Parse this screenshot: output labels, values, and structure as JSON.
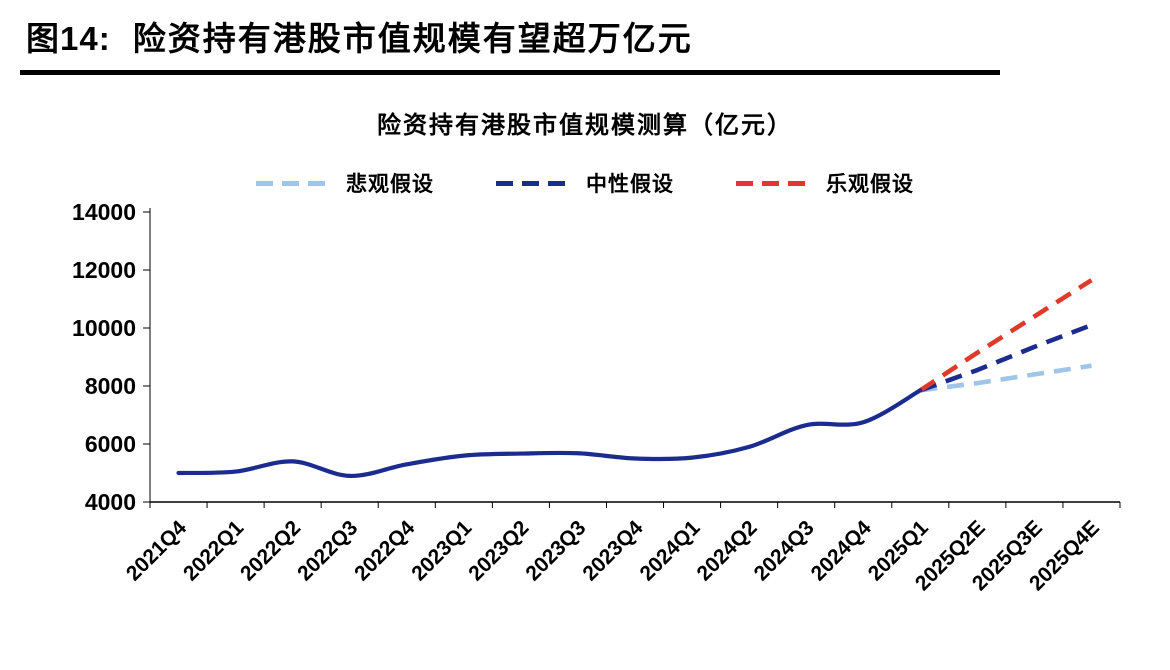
{
  "header": {
    "figure_label": "图14:",
    "title": "险资持有港股市值规模有望超万亿元"
  },
  "chart_data": {
    "type": "line",
    "title": "险资持有港股市值规模测算（亿元）",
    "xlabel": "",
    "ylabel": "",
    "ylim": [
      4000,
      14000
    ],
    "yticks": [
      4000,
      6000,
      8000,
      10000,
      12000,
      14000
    ],
    "grid": false,
    "legend_position": "top",
    "categories": [
      "2021Q4",
      "2022Q1",
      "2022Q2",
      "2022Q3",
      "2022Q4",
      "2023Q1",
      "2023Q2",
      "2023Q3",
      "2023Q4",
      "2024Q1",
      "2024Q2",
      "2024Q3",
      "2024Q4",
      "2025Q1",
      "2025Q2E",
      "2025Q3E",
      "2025Q4E"
    ],
    "series": [
      {
        "id": "pessimistic",
        "label": "悲观假设",
        "color": "#9FC5E8",
        "style": "dashed",
        "values": [
          null,
          null,
          null,
          null,
          null,
          null,
          null,
          null,
          null,
          null,
          null,
          null,
          null,
          7850,
          8100,
          8400,
          8700
        ]
      },
      {
        "id": "neutral",
        "label": "中性假设",
        "color": "#1B2C8E",
        "style": "dashed",
        "values": [
          null,
          null,
          null,
          null,
          null,
          null,
          null,
          null,
          null,
          null,
          null,
          null,
          null,
          7850,
          8550,
          9350,
          10100
        ]
      },
      {
        "id": "optimistic",
        "label": "乐观假设",
        "color": "#E0392C",
        "style": "dashed",
        "values": [
          null,
          null,
          null,
          null,
          null,
          null,
          null,
          null,
          null,
          null,
          null,
          null,
          null,
          7850,
          9150,
          10400,
          11650
        ]
      },
      {
        "id": "historical",
        "label": "",
        "color": "#1B2C8E",
        "style": "solid",
        "values": [
          5000,
          5050,
          5400,
          4900,
          5300,
          5600,
          5670,
          5680,
          5500,
          5530,
          5900,
          6650,
          6750,
          7850,
          null,
          null,
          null
        ]
      }
    ]
  }
}
